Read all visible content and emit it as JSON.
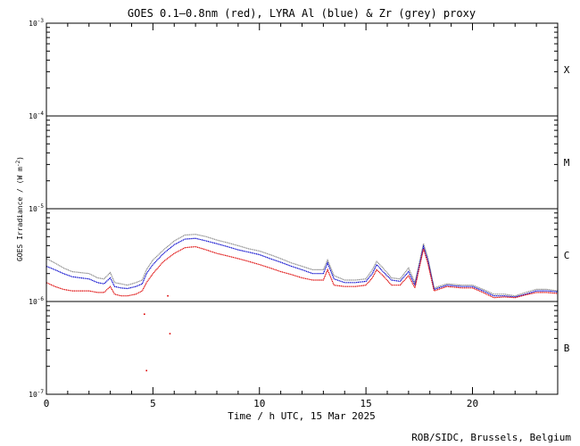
{
  "chart_data": {
    "type": "line",
    "title": "GOES 0.1—0.8nm (red), LYRA Al (blue) & Zr (grey) proxy",
    "xlabel": "Time / h UTC, 15 Mar 2025",
    "ylabel_main": "GOES Irradiance / (W m",
    "ylabel_sup": "-2",
    "ylabel_close": ")",
    "xlim": [
      0,
      24
    ],
    "ylim": [
      1e-07,
      0.001
    ],
    "yscale": "log",
    "x_ticks": [
      {
        "value": 0,
        "label": "0"
      },
      {
        "value": 5,
        "label": "5"
      },
      {
        "value": 10,
        "label": "10"
      },
      {
        "value": 15,
        "label": "15"
      },
      {
        "value": 20,
        "label": "20"
      }
    ],
    "y_ticks": [
      {
        "value": 0.001,
        "base": "10",
        "exp": "-3"
      },
      {
        "value": 0.0001,
        "base": "10",
        "exp": "-4"
      },
      {
        "value": 1e-05,
        "base": "10",
        "exp": "-5"
      },
      {
        "value": 1e-06,
        "base": "10",
        "exp": "-6"
      },
      {
        "value": 1e-07,
        "base": "10",
        "exp": "-7"
      }
    ],
    "flare_classes": [
      {
        "label": "X",
        "y": 0.000316
      },
      {
        "label": "M",
        "y": 3.16e-05
      },
      {
        "label": "C",
        "y": 3.16e-06
      },
      {
        "label": "B",
        "y": 3.16e-07
      }
    ],
    "class_lines": [
      0.0001,
      1e-05,
      1e-06
    ],
    "series": [
      {
        "name": "LYRA Zr (grey)",
        "color": "#888888",
        "points": [
          [
            0,
            2.9e-06
          ],
          [
            0.4,
            2.6e-06
          ],
          [
            0.8,
            2.3e-06
          ],
          [
            1.2,
            2.1e-06
          ],
          [
            1.6,
            2.05e-06
          ],
          [
            2.0,
            2e-06
          ],
          [
            2.4,
            1.8e-06
          ],
          [
            2.7,
            1.75e-06
          ],
          [
            3.0,
            2.05e-06
          ],
          [
            3.2,
            1.6e-06
          ],
          [
            3.5,
            1.55e-06
          ],
          [
            3.8,
            1.5e-06
          ],
          [
            4.2,
            1.6e-06
          ],
          [
            4.5,
            1.7e-06
          ],
          [
            4.7,
            2.2e-06
          ],
          [
            5.0,
            2.8e-06
          ],
          [
            5.5,
            3.6e-06
          ],
          [
            6.0,
            4.5e-06
          ],
          [
            6.5,
            5.2e-06
          ],
          [
            7.0,
            5.3e-06
          ],
          [
            7.5,
            5e-06
          ],
          [
            8.0,
            4.6e-06
          ],
          [
            8.5,
            4.3e-06
          ],
          [
            9.0,
            4e-06
          ],
          [
            9.5,
            3.7e-06
          ],
          [
            10.0,
            3.5e-06
          ],
          [
            10.5,
            3.2e-06
          ],
          [
            11.0,
            2.9e-06
          ],
          [
            11.5,
            2.6e-06
          ],
          [
            12.0,
            2.4e-06
          ],
          [
            12.5,
            2.2e-06
          ],
          [
            13.0,
            2.2e-06
          ],
          [
            13.2,
            2.8e-06
          ],
          [
            13.5,
            1.9e-06
          ],
          [
            14.0,
            1.7e-06
          ],
          [
            14.5,
            1.7e-06
          ],
          [
            15.0,
            1.75e-06
          ],
          [
            15.3,
            2.2e-06
          ],
          [
            15.5,
            2.7e-06
          ],
          [
            15.8,
            2.3e-06
          ],
          [
            16.2,
            1.8e-06
          ],
          [
            16.6,
            1.75e-06
          ],
          [
            17.0,
            2.3e-06
          ],
          [
            17.3,
            1.6e-06
          ],
          [
            17.7,
            4.2e-06
          ],
          [
            17.9,
            3e-06
          ],
          [
            18.2,
            1.4e-06
          ],
          [
            18.8,
            1.55e-06
          ],
          [
            19.5,
            1.5e-06
          ],
          [
            20.0,
            1.5e-06
          ],
          [
            20.5,
            1.35e-06
          ],
          [
            21.0,
            1.2e-06
          ],
          [
            21.5,
            1.2e-06
          ],
          [
            22.0,
            1.15e-06
          ],
          [
            22.5,
            1.25e-06
          ],
          [
            23.0,
            1.35e-06
          ],
          [
            23.5,
            1.35e-06
          ],
          [
            24.0,
            1.3e-06
          ]
        ]
      },
      {
        "name": "LYRA Al (blue)",
        "color": "#0000cc",
        "points": [
          [
            0,
            2.4e-06
          ],
          [
            0.4,
            2.2e-06
          ],
          [
            0.8,
            2e-06
          ],
          [
            1.2,
            1.85e-06
          ],
          [
            1.6,
            1.8e-06
          ],
          [
            2.0,
            1.75e-06
          ],
          [
            2.4,
            1.6e-06
          ],
          [
            2.7,
            1.55e-06
          ],
          [
            3.0,
            1.8e-06
          ],
          [
            3.2,
            1.45e-06
          ],
          [
            3.5,
            1.4e-06
          ],
          [
            3.8,
            1.38e-06
          ],
          [
            4.2,
            1.45e-06
          ],
          [
            4.5,
            1.55e-06
          ],
          [
            4.7,
            2e-06
          ],
          [
            5.0,
            2.5e-06
          ],
          [
            5.5,
            3.3e-06
          ],
          [
            6.0,
            4.1e-06
          ],
          [
            6.5,
            4.7e-06
          ],
          [
            7.0,
            4.8e-06
          ],
          [
            7.5,
            4.5e-06
          ],
          [
            8.0,
            4.2e-06
          ],
          [
            8.5,
            3.9e-06
          ],
          [
            9.0,
            3.6e-06
          ],
          [
            9.5,
            3.4e-06
          ],
          [
            10.0,
            3.2e-06
          ],
          [
            10.5,
            2.9e-06
          ],
          [
            11.0,
            2.65e-06
          ],
          [
            11.5,
            2.4e-06
          ],
          [
            12.0,
            2.2e-06
          ],
          [
            12.5,
            2e-06
          ],
          [
            13.0,
            2e-06
          ],
          [
            13.2,
            2.6e-06
          ],
          [
            13.5,
            1.75e-06
          ],
          [
            14.0,
            1.6e-06
          ],
          [
            14.5,
            1.6e-06
          ],
          [
            15.0,
            1.65e-06
          ],
          [
            15.3,
            2e-06
          ],
          [
            15.5,
            2.5e-06
          ],
          [
            15.8,
            2.1e-06
          ],
          [
            16.2,
            1.7e-06
          ],
          [
            16.6,
            1.65e-06
          ],
          [
            17.0,
            2.1e-06
          ],
          [
            17.3,
            1.5e-06
          ],
          [
            17.7,
            3.9e-06
          ],
          [
            17.9,
            2.8e-06
          ],
          [
            18.2,
            1.35e-06
          ],
          [
            18.8,
            1.5e-06
          ],
          [
            19.5,
            1.45e-06
          ],
          [
            20.0,
            1.45e-06
          ],
          [
            20.5,
            1.3e-06
          ],
          [
            21.0,
            1.15e-06
          ],
          [
            21.5,
            1.15e-06
          ],
          [
            22.0,
            1.12e-06
          ],
          [
            22.5,
            1.2e-06
          ],
          [
            23.0,
            1.3e-06
          ],
          [
            23.5,
            1.3e-06
          ],
          [
            24.0,
            1.27e-06
          ]
        ]
      },
      {
        "name": "GOES 0.1-0.8nm (red)",
        "color": "#dd0000",
        "points": [
          [
            0,
            1.6e-06
          ],
          [
            0.4,
            1.45e-06
          ],
          [
            0.8,
            1.35e-06
          ],
          [
            1.2,
            1.3e-06
          ],
          [
            1.6,
            1.3e-06
          ],
          [
            2.0,
            1.3e-06
          ],
          [
            2.4,
            1.25e-06
          ],
          [
            2.7,
            1.25e-06
          ],
          [
            3.0,
            1.45e-06
          ],
          [
            3.2,
            1.2e-06
          ],
          [
            3.5,
            1.15e-06
          ],
          [
            3.8,
            1.15e-06
          ],
          [
            4.2,
            1.2e-06
          ],
          [
            4.5,
            1.3e-06
          ],
          [
            4.7,
            1.6e-06
          ],
          [
            5.0,
            2e-06
          ],
          [
            5.5,
            2.7e-06
          ],
          [
            6.0,
            3.3e-06
          ],
          [
            6.5,
            3.8e-06
          ],
          [
            7.0,
            3.9e-06
          ],
          [
            7.5,
            3.6e-06
          ],
          [
            8.0,
            3.3e-06
          ],
          [
            8.5,
            3.1e-06
          ],
          [
            9.0,
            2.9e-06
          ],
          [
            9.5,
            2.7e-06
          ],
          [
            10.0,
            2.5e-06
          ],
          [
            10.5,
            2.3e-06
          ],
          [
            11.0,
            2.1e-06
          ],
          [
            11.5,
            1.95e-06
          ],
          [
            12.0,
            1.8e-06
          ],
          [
            12.5,
            1.7e-06
          ],
          [
            13.0,
            1.7e-06
          ],
          [
            13.2,
            2.2e-06
          ],
          [
            13.5,
            1.5e-06
          ],
          [
            14.0,
            1.45e-06
          ],
          [
            14.5,
            1.45e-06
          ],
          [
            15.0,
            1.5e-06
          ],
          [
            15.3,
            1.8e-06
          ],
          [
            15.5,
            2.2e-06
          ],
          [
            15.8,
            1.9e-06
          ],
          [
            16.2,
            1.5e-06
          ],
          [
            16.6,
            1.5e-06
          ],
          [
            17.0,
            1.9e-06
          ],
          [
            17.3,
            1.4e-06
          ],
          [
            17.7,
            3.7e-06
          ],
          [
            17.9,
            2.6e-06
          ],
          [
            18.2,
            1.3e-06
          ],
          [
            18.8,
            1.45e-06
          ],
          [
            19.5,
            1.4e-06
          ],
          [
            20.0,
            1.4e-06
          ],
          [
            20.5,
            1.25e-06
          ],
          [
            21.0,
            1.1e-06
          ],
          [
            21.5,
            1.12e-06
          ],
          [
            22.0,
            1.1e-06
          ],
          [
            22.5,
            1.18e-06
          ],
          [
            23.0,
            1.25e-06
          ],
          [
            23.5,
            1.25e-06
          ],
          [
            24.0,
            1.22e-06
          ]
        ]
      }
    ],
    "outlier_points": [
      {
        "x": 4.6,
        "y": 7.3e-07,
        "color": "#dd0000"
      },
      {
        "x": 4.7,
        "y": 1.8e-07,
        "color": "#dd0000"
      },
      {
        "x": 5.8,
        "y": 4.5e-07,
        "color": "#dd0000"
      },
      {
        "x": 5.7,
        "y": 1.15e-06,
        "color": "#dd0000"
      }
    ]
  },
  "footer": {
    "credit": "ROB/SIDC, Brussels, Belgium"
  }
}
